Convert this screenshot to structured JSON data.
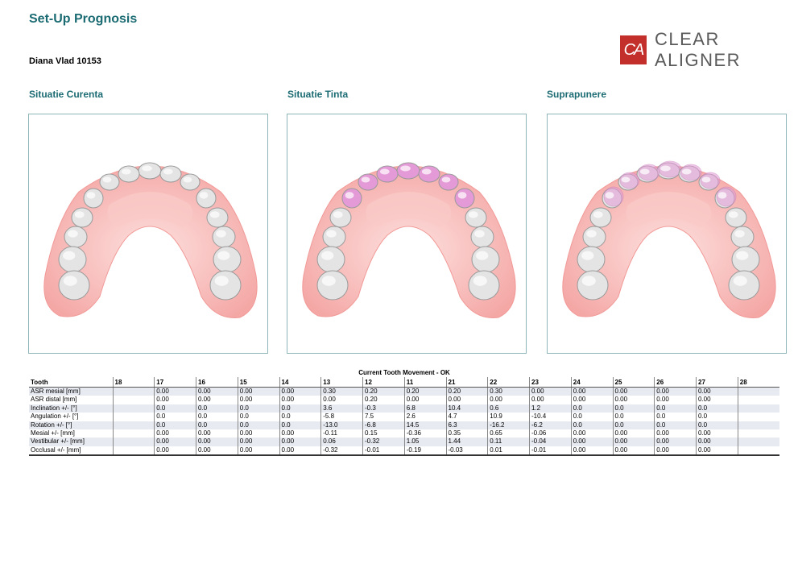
{
  "header": {
    "title": "Set-Up Prognosis",
    "patient": "Diana Vlad 10153",
    "logo_mark": "CA",
    "logo_text": "CLEAR ALIGNER"
  },
  "views": [
    {
      "label": "Situatie Curenta"
    },
    {
      "label": "Situatie Tinta"
    },
    {
      "label": "Suprapunere"
    }
  ],
  "table": {
    "title": "Current Tooth Movement - OK",
    "columns": [
      "Tooth",
      "18",
      "17",
      "16",
      "15",
      "14",
      "13",
      "12",
      "11",
      "21",
      "22",
      "23",
      "24",
      "25",
      "26",
      "27",
      "28"
    ],
    "rows": [
      [
        "ASR mesial [mm]",
        "",
        "0.00",
        "0.00",
        "0.00",
        "0.00",
        "0.30",
        "0.20",
        "0.20",
        "0.20",
        "0.30",
        "0.00",
        "0.00",
        "0.00",
        "0.00",
        "0.00",
        ""
      ],
      [
        "ASR distal [mm]",
        "",
        "0.00",
        "0.00",
        "0.00",
        "0.00",
        "0.00",
        "0.20",
        "0.00",
        "0.00",
        "0.00",
        "0.00",
        "0.00",
        "0.00",
        "0.00",
        "0.00",
        ""
      ],
      [
        "Inclination +/- [°]",
        "",
        "0.0",
        "0.0",
        "0.0",
        "0.0",
        "3.6",
        "-0.3",
        "6.8",
        "10.4",
        "0.6",
        "1.2",
        "0.0",
        "0.0",
        "0.0",
        "0.0",
        ""
      ],
      [
        "Angulation +/- [°]",
        "",
        "0.0",
        "0.0",
        "0.0",
        "0.0",
        "-5.8",
        "7.5",
        "2.6",
        "4.7",
        "10.9",
        "-10.4",
        "0.0",
        "0.0",
        "0.0",
        "0.0",
        ""
      ],
      [
        "Rotation +/- [°]",
        "",
        "0.0",
        "0.0",
        "0.0",
        "0.0",
        "-13.0",
        "-6.8",
        "14.5",
        "6.3",
        "-16.2",
        "-6.2",
        "0.0",
        "0.0",
        "0.0",
        "0.0",
        ""
      ],
      [
        "Mesial +/- [mm]",
        "",
        "0.00",
        "0.00",
        "0.00",
        "0.00",
        "-0.11",
        "0.15",
        "-0.36",
        "0.35",
        "0.65",
        "-0.06",
        "0.00",
        "0.00",
        "0.00",
        "0.00",
        ""
      ],
      [
        "Vestibular +/- [mm]",
        "",
        "0.00",
        "0.00",
        "0.00",
        "0.00",
        "0.06",
        "-0.32",
        "1.05",
        "1.44",
        "0.11",
        "-0.04",
        "0.00",
        "0.00",
        "0.00",
        "0.00",
        ""
      ],
      [
        "Occlusal +/- [mm]",
        "",
        "0.00",
        "0.00",
        "0.00",
        "0.00",
        "-0.32",
        "-0.01",
        "-0.19",
        "-0.03",
        "0.01",
        "-0.01",
        "0.00",
        "0.00",
        "0.00",
        "0.00",
        ""
      ]
    ]
  },
  "colors": {
    "heading": "#1b6b73",
    "logo_red": "#c32f2b",
    "gum": "#f4a7a5",
    "tooth": "#e4e4e4",
    "moved_tooth": "#e59ad8"
  }
}
